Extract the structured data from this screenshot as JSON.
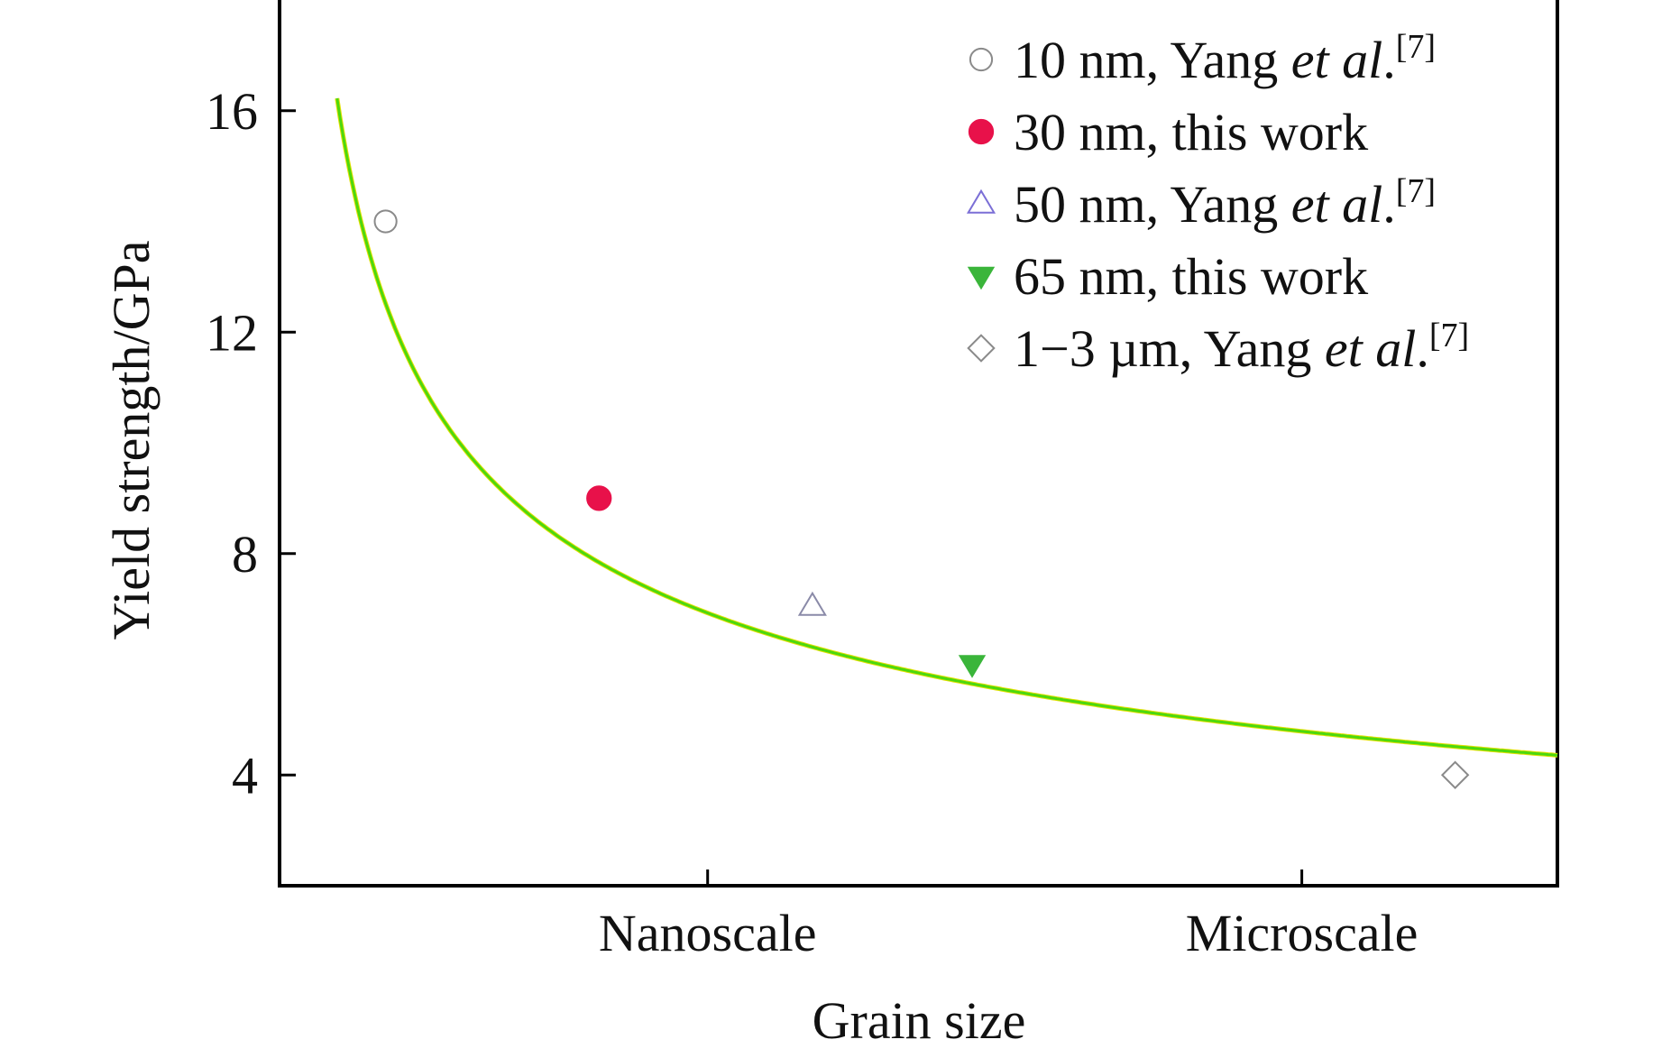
{
  "chart_data": {
    "type": "scatter",
    "title": "",
    "xlabel": "Grain size",
    "ylabel": "Yield strength/GPa",
    "xlim": [
      0,
      100
    ],
    "ylim": [
      2,
      18
    ],
    "x_ticks": [
      {
        "value": 33.5,
        "label": "Nanoscale"
      },
      {
        "value": 80,
        "label": "Microscale"
      }
    ],
    "y_ticks": [
      {
        "value": 4,
        "label": "4"
      },
      {
        "value": 8,
        "label": "8"
      },
      {
        "value": 12,
        "label": "12"
      },
      {
        "value": 16,
        "label": "16"
      }
    ],
    "series": [
      {
        "name": "10 nm, Yang et al.[7]",
        "name_parts": {
          "lead": "10 nm, Yang ",
          "italic": "et al",
          "tail": ".",
          "sup": "[7]"
        },
        "marker": "circle-open",
        "color": "#8a8a8a",
        "points": [
          {
            "x": 8.3,
            "y": 14
          }
        ]
      },
      {
        "name": "30 nm, this work",
        "name_parts": {
          "lead": "30 nm, this work",
          "italic": "",
          "tail": "",
          "sup": ""
        },
        "marker": "circle-filled",
        "color": "#e8114a",
        "points": [
          {
            "x": 25,
            "y": 9
          }
        ]
      },
      {
        "name": "50 nm, Yang et al.[7]",
        "name_parts": {
          "lead": "50 nm, Yang ",
          "italic": "et al",
          "tail": ".",
          "sup": "[7]"
        },
        "marker": "triangle-up-open",
        "color": "#8a8aa8",
        "legend_color": "#7b6fd6",
        "points": [
          {
            "x": 41.7,
            "y": 7.05
          }
        ]
      },
      {
        "name": "65 nm, this work",
        "name_parts": {
          "lead": "65 nm, this work",
          "italic": "",
          "tail": "",
          "sup": ""
        },
        "marker": "triangle-down-filled",
        "color": "#3ab53a",
        "points": [
          {
            "x": 54.2,
            "y": 6
          }
        ]
      },
      {
        "name": "1−3 µm, Yang et al.[7]",
        "name_parts": {
          "lead": "1−3 µm, Yang ",
          "italic": "et al",
          "tail": ".",
          "sup": "[7]"
        },
        "marker": "diamond-open",
        "color": "#8a8a8a",
        "points": [
          {
            "x": 92,
            "y": 4
          }
        ]
      }
    ],
    "fit_curve": {
      "type": "power-law",
      "equation": "y = a * x^b",
      "a": 30.7,
      "b": -0.424,
      "x_range": [
        4.5,
        100
      ],
      "color": "#4cd80e",
      "shadow_color": "#e4e000"
    },
    "legend_position": "top-right",
    "grid": false
  }
}
